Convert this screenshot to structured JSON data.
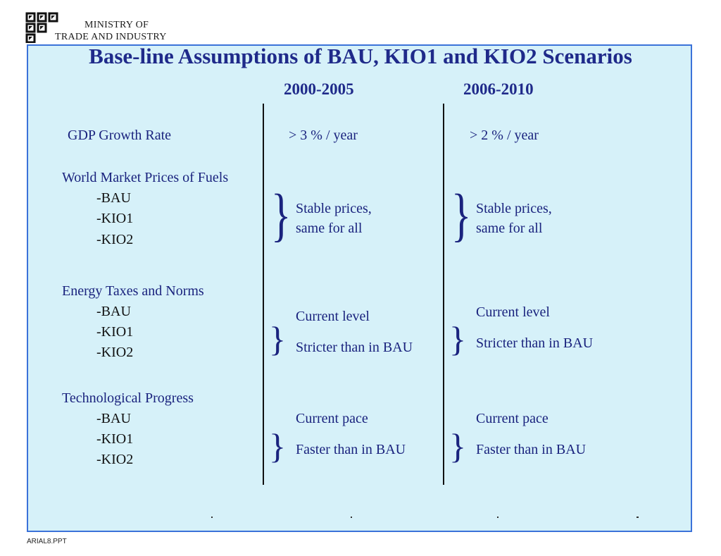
{
  "header": {
    "org_line1": "MINISTRY OF",
    "org_line2": "TRADE AND INDUSTRY"
  },
  "slide": {
    "title": "Base-line Assumptions of BAU, KIO1 and KIO2 Scenarios",
    "columns": [
      "2000-2005",
      "2006-2010"
    ],
    "rows": [
      {
        "label": "GDP Growth Rate",
        "subs": [],
        "col1": [
          "> 3 % / year"
        ],
        "col2": [
          "> 2 % / year"
        ]
      },
      {
        "label": "World Market Prices of Fuels",
        "subs": [
          "-BAU",
          "-KIO1",
          "-KIO2"
        ],
        "col1": [
          "Stable prices,",
          "same for all"
        ],
        "col2": [
          "Stable prices,",
          "same for all"
        ]
      },
      {
        "label": "Energy Taxes and Norms",
        "subs": [
          "-BAU",
          "-KIO1",
          "-KIO2"
        ],
        "col1": [
          "Current level",
          "Stricter than in BAU"
        ],
        "col2": [
          "Current level",
          "Stricter than in BAU"
        ]
      },
      {
        "label": "Technological Progress",
        "subs": [
          "-BAU",
          "-KIO1",
          "-KIO2"
        ],
        "col1": [
          "Current pace",
          "Faster than in BAU"
        ],
        "col2": [
          "Current pace",
          "Faster than in BAU"
        ]
      }
    ]
  },
  "footer": {
    "file_name": "ARIAL8.PPT"
  },
  "colors": {
    "panel_bg": "#d6f1f9",
    "panel_border": "#3b72d9",
    "title": "#1f2a8a",
    "text": "#1a237e"
  }
}
